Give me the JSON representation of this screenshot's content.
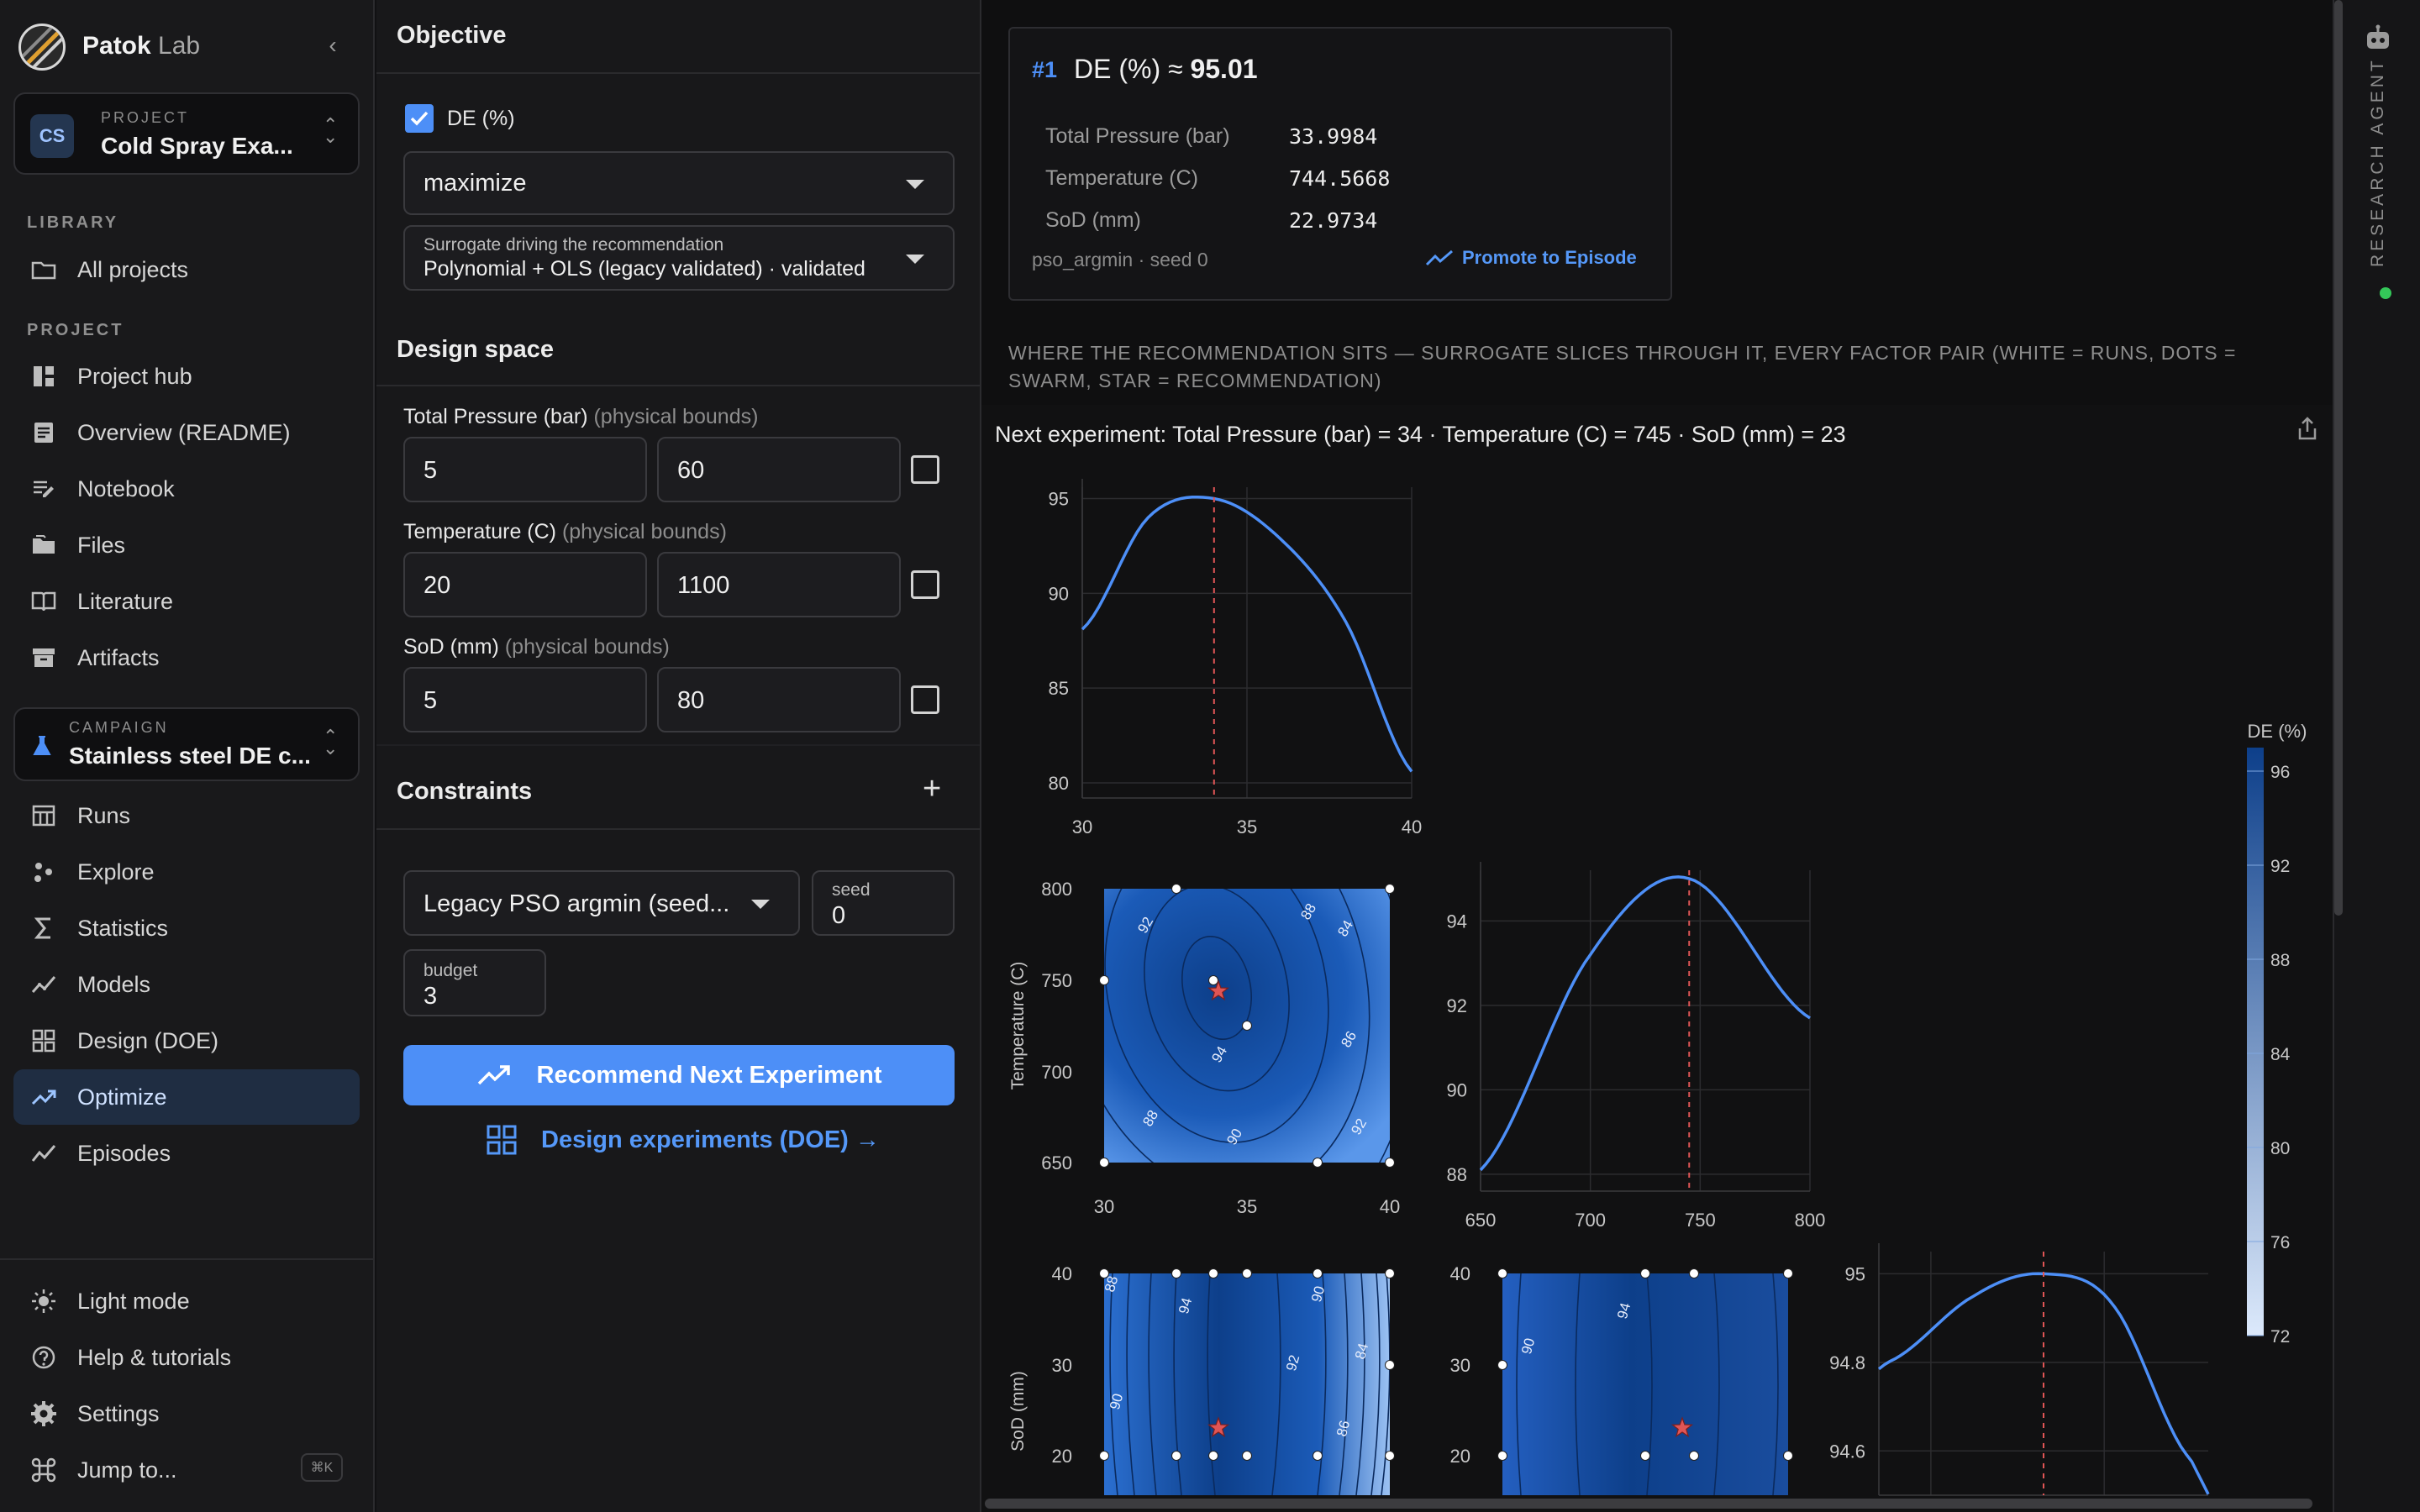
{
  "sidebar": {
    "brand": "Patok",
    "brand_suffix": "Lab",
    "project_caption": "PROJECT",
    "project_badge": "CS",
    "project_name": "Cold Spray Exa...",
    "library_label": "LIBRARY",
    "library_items": [
      {
        "label": "All projects",
        "icon": "folder-icon"
      }
    ],
    "project_label": "PROJECT",
    "project_items": [
      {
        "label": "Project hub",
        "icon": "hub-icon"
      },
      {
        "label": "Overview (README)",
        "icon": "document-icon"
      },
      {
        "label": "Notebook",
        "icon": "notebook-icon"
      },
      {
        "label": "Files",
        "icon": "files-icon"
      },
      {
        "label": "Literature",
        "icon": "book-icon"
      },
      {
        "label": "Artifacts",
        "icon": "archive-icon"
      }
    ],
    "campaign_caption": "CAMPAIGN",
    "campaign_name": "Stainless steel DE c...",
    "campaign_items": [
      {
        "label": "Runs",
        "icon": "table-icon"
      },
      {
        "label": "Explore",
        "icon": "scatter-icon"
      },
      {
        "label": "Statistics",
        "icon": "sigma-icon"
      },
      {
        "label": "Models",
        "icon": "models-icon"
      },
      {
        "label": "Design (DOE)",
        "icon": "grid-icon"
      },
      {
        "label": "Optimize",
        "icon": "trend-icon",
        "active": true
      },
      {
        "label": "Episodes",
        "icon": "episodes-icon"
      }
    ],
    "footer_items": [
      {
        "label": "Light mode",
        "icon": "sun-icon"
      },
      {
        "label": "Help & tutorials",
        "icon": "help-icon"
      },
      {
        "label": "Settings",
        "icon": "gear-icon"
      },
      {
        "label": "Jump to...",
        "icon": "command-icon"
      }
    ],
    "jump_shortcut": "⌘K"
  },
  "panel": {
    "objective_heading": "Objective",
    "objective_name": "DE (%)",
    "objective_checked": true,
    "direction": "maximize",
    "surrogate_caption": "Surrogate driving the recommendation",
    "surrogate_value": "Polynomial + OLS (legacy validated) · validated",
    "design_heading": "Design space",
    "bounds_hint": "(physical bounds)",
    "factors": [
      {
        "name": "Total Pressure (bar)",
        "min": "5",
        "max": "60"
      },
      {
        "name": "Temperature (C)",
        "min": "20",
        "max": "1100"
      },
      {
        "name": "SoD (mm)",
        "min": "5",
        "max": "80"
      }
    ],
    "constraints_heading": "Constraints",
    "add_symbol": "+",
    "algorithm": "Legacy PSO argmin (seed...",
    "seed_label": "seed",
    "seed_value": "0",
    "budget_label": "budget",
    "budget_value": "3",
    "recommend_label": "Recommend Next Experiment",
    "doe_link": "Design experiments (DOE) →"
  },
  "recommendation": {
    "rank": "#1",
    "title_prefix": "DE (%) ≈",
    "title_value": "95.01",
    "rows": [
      {
        "key": "Total Pressure (bar)",
        "value": "33.9984"
      },
      {
        "key": "Temperature (C)",
        "value": "744.5668"
      },
      {
        "key": "SoD (mm)",
        "value": "22.9734"
      }
    ],
    "footer": "pso_argmin · seed 0",
    "promote_label": "Promote to Episode"
  },
  "where_caption": "WHERE THE RECOMMENDATION SITS — SURROGATE SLICES THROUGH IT, EVERY FACTOR PAIR (WHITE = RUNS, DOTS = SWARM, STAR = RECOMMENDATION)",
  "next_experiment": "Next experiment: Total Pressure (bar) = 34 · Temperature (C) = 745 · SoD (mm) = 23",
  "rail": {
    "label": "RESEARCH AGENT"
  },
  "colors": {
    "accent": "#4d8ff7",
    "contour_dark": "#0d3f8a",
    "contour_light": "#a9cbf5",
    "status_online": "#34c759",
    "marker": "#e05555"
  },
  "chart_data": {
    "type": "line",
    "title": "",
    "colorbar": {
      "label": "DE (%)",
      "ticks": [
        96,
        92,
        88,
        84,
        80,
        76,
        72
      ],
      "range": [
        72,
        97
      ]
    },
    "recommendation": {
      "Total Pressure (bar)": 34,
      "Temperature (C)": 745,
      "SoD (mm)": 23
    },
    "panels": [
      {
        "kind": "line",
        "factor": "Total Pressure (bar)",
        "xticks": [
          "30",
          "35",
          "40"
        ],
        "yticks": [
          "95",
          "90",
          "85",
          "80"
        ],
        "x": [
          30,
          32,
          34,
          36,
          38,
          40
        ],
        "y": [
          88.1,
          94.0,
          95.0,
          92.9,
          88.5,
          80.6
        ],
        "marker_x": 34
      },
      {
        "kind": "contour",
        "x_factor": "Total Pressure (bar)",
        "y_factor": "Temperature (C)",
        "xticks": [
          "30",
          "35",
          "40"
        ],
        "yticks": [
          "800",
          "750",
          "700",
          "650"
        ],
        "contour_labels": [
          "92",
          "88",
          "84",
          "94",
          "86",
          "88",
          "90",
          "92"
        ]
      },
      {
        "kind": "line",
        "factor": "Temperature (C)",
        "xticks": [
          "650",
          "700",
          "750",
          "800"
        ],
        "yticks": [
          "94",
          "92",
          "90",
          "88"
        ],
        "x": [
          650,
          700,
          745,
          800
        ],
        "y": [
          88.1,
          93.2,
          95.0,
          91.7
        ],
        "marker_x": 745
      },
      {
        "kind": "contour",
        "x_factor": "Total Pressure (bar)",
        "y_factor": "SoD (mm)",
        "yticks": [
          "40",
          "30",
          "20"
        ],
        "contour_labels": [
          "88",
          "94",
          "90",
          "92",
          "84",
          "90",
          "86"
        ]
      },
      {
        "kind": "contour",
        "x_factor": "Temperature (C)",
        "y_factor": "SoD (mm)",
        "yticks": [
          "40",
          "30",
          "20"
        ],
        "contour_labels": [
          "94",
          "90"
        ]
      },
      {
        "kind": "line",
        "factor": "SoD (mm)",
        "yticks": [
          "95",
          "94.8",
          "94.6"
        ],
        "x": [
          5,
          15,
          23,
          31,
          40
        ],
        "y": [
          94.8,
          94.95,
          95.0,
          94.93,
          94.58
        ],
        "marker_x": 23
      }
    ]
  }
}
